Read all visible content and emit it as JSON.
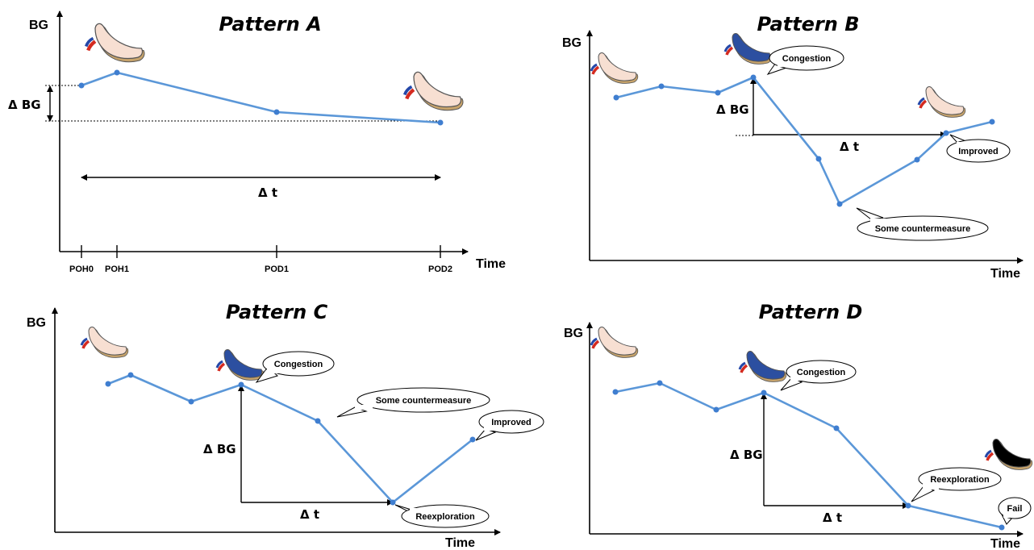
{
  "panels": {
    "a": {
      "title": "Pattern A",
      "ylabel": "BG",
      "xlabel": "Time",
      "delta_bg": "Δ BG",
      "delta_t": "Δ t",
      "ticks": [
        "POH0",
        "POH1",
        "POD1",
        "POD2"
      ]
    },
    "b": {
      "title": "Pattern B",
      "ylabel": "BG",
      "xlabel": "Time",
      "delta_bg": "Δ BG",
      "delta_t": "Δ t",
      "callouts": {
        "congestion": "Congestion",
        "countermeasure": "Some countermeasure",
        "improved": "Improved"
      }
    },
    "c": {
      "title": "Pattern C",
      "ylabel": "BG",
      "xlabel": "Time",
      "delta_bg": "Δ BG",
      "delta_t": "Δ t",
      "callouts": {
        "congestion": "Congestion",
        "countermeasure": "Some countermeasure",
        "improved": "Improved",
        "reexploration": "Reexploration"
      }
    },
    "d": {
      "title": "Pattern D",
      "ylabel": "BG",
      "xlabel": "Time",
      "delta_bg": "Δ BG",
      "delta_t": "Δ t",
      "callouts": {
        "congestion": "Congestion",
        "reexploration": "Reexploration",
        "fail": "Fail"
      }
    }
  },
  "icons": {
    "heart_healthy_color": "#f7dfd2",
    "heart_congested_color": "#2c4fa0",
    "heart_failed_color": "#000000"
  },
  "colors": {
    "line": "#5b97d8",
    "point": "#3f7ed0"
  }
}
